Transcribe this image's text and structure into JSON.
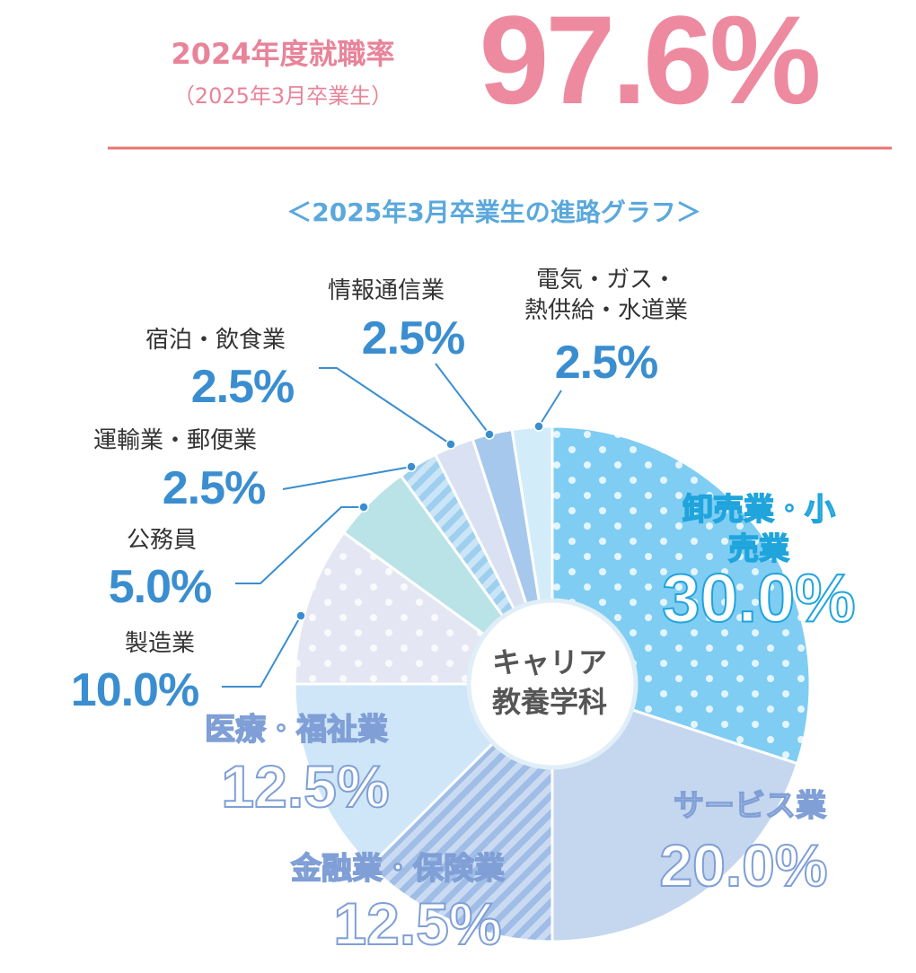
{
  "header": {
    "title": "2024年度就職率",
    "note": "（2025年3月卒業生）",
    "rate": "97.6%"
  },
  "chart_data": {
    "type": "pie",
    "title": "＜2025年3月卒業生の進路グラフ＞",
    "center_label": [
      "キャリア",
      "教養学科"
    ],
    "categories": [
      "卸売業・小売業",
      "サービス業",
      "金融業・保険業",
      "医療・福祉業",
      "製造業",
      "公務員",
      "運輸業・郵便業",
      "宿泊・飲食業",
      "情報通信業",
      "電気・ガス・\n熱供給・水道業"
    ],
    "values": [
      30.0,
      20.0,
      12.5,
      12.5,
      10.0,
      5.0,
      2.5,
      2.5,
      2.5,
      2.5
    ],
    "value_labels": [
      "30.0%",
      "20.0%",
      "12.5%",
      "12.5%",
      "10.0%",
      "5.0%",
      "2.5%",
      "2.5%",
      "2.5%",
      "2.5%"
    ],
    "colors": [
      "#7fcdf3",
      "#c5d6ef",
      "#9fbde6",
      "#cfe6f8",
      "#e4e6f3",
      "#b9e3e6",
      "#9fcfef",
      "#d9e1f2",
      "#a6c8ec",
      "#d3ecfa"
    ],
    "patterns": [
      "dots",
      "none",
      "stripes",
      "none",
      "dots",
      "none",
      "stripes",
      "none",
      "none",
      "none"
    ]
  }
}
